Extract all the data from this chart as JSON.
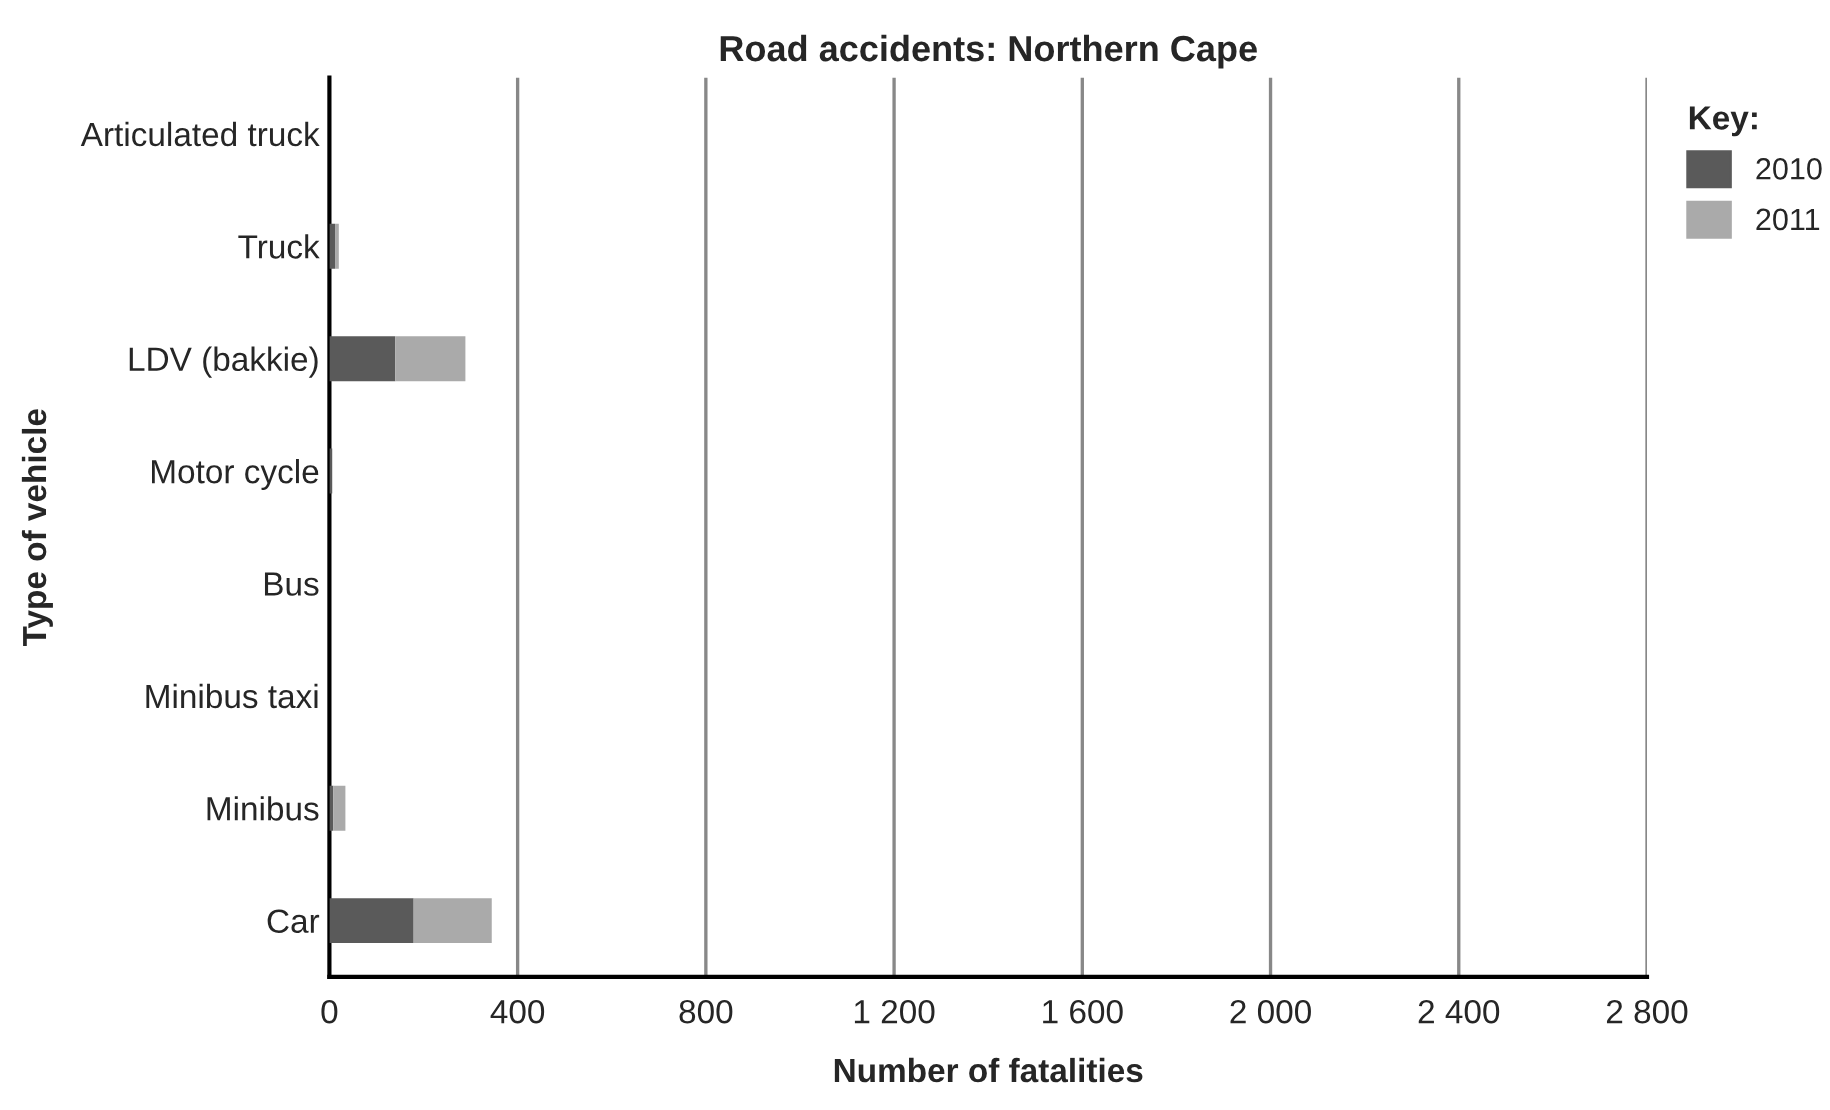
{
  "chart_data": {
    "type": "bar",
    "orientation": "horizontal",
    "stacked": true,
    "title": "Road accidents: Northern Cape",
    "xlabel": "Number of fatalities",
    "ylabel": "Type of vehicle",
    "legend_title": "Key:",
    "categories": [
      "Articulated truck",
      "Truck",
      "LDV (bakkie)",
      "Motor cycle",
      "Bus",
      "Minibus taxi",
      "Minibus",
      "Car"
    ],
    "series": [
      {
        "name": "2010",
        "color": "#5a5a5a",
        "values": [
          0,
          12,
          140,
          6,
          0,
          0,
          8,
          179
        ]
      },
      {
        "name": "2011",
        "color": "#aaaaaa",
        "values": [
          0,
          8,
          149,
          null,
          0,
          0,
          26,
          166
        ]
      }
    ],
    "xlim": [
      0,
      2800
    ],
    "xticks": [
      0,
      400,
      800,
      {
        "value": 1200,
        "label": "1 200"
      },
      {
        "value": 1600,
        "label": "1 600"
      },
      {
        "value": 2000,
        "label": "2 000"
      },
      {
        "value": 2400,
        "label": "2 400"
      },
      {
        "value": 2800,
        "label": "2 800"
      }
    ],
    "grid": "x",
    "legend": "top right"
  }
}
